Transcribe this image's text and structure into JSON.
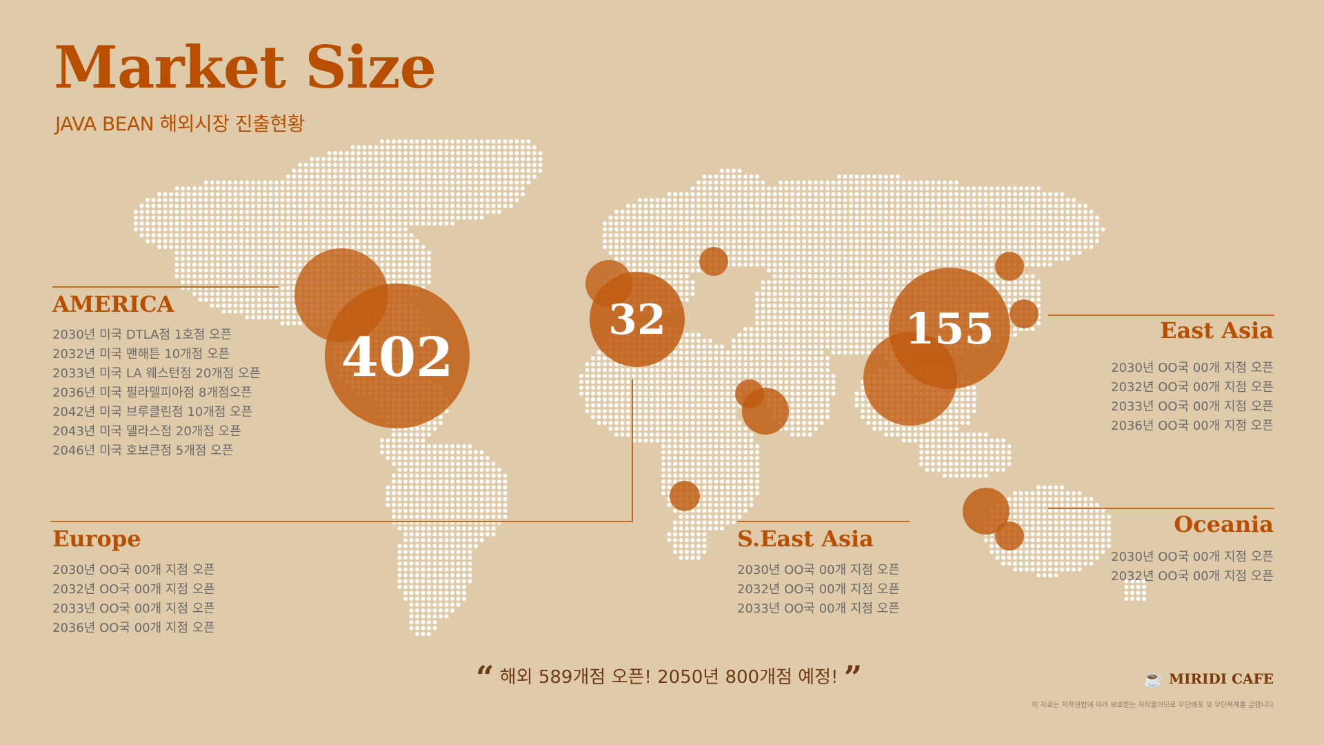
{
  "header": {
    "title": "Market Size",
    "subtitle": "JAVA BEAN 해외시장 진출현황"
  },
  "colors": {
    "background": "#dfcbaa",
    "accent": "#b84f00",
    "bubble": "#c05a10",
    "dots": "#ffffff"
  },
  "bubbles": {
    "america_value": "402",
    "europe_value": "32",
    "east_asia_value": "155"
  },
  "regions": {
    "america": {
      "name": "AMERICA",
      "items": [
        "2030년 미국 DTLA점 1호점 오픈",
        "2032년 미국 맨해튼 10개점 오픈",
        "2033년 미국 LA 웨스턴점 20개점 오픈",
        "2036년 미국 필라델피아점 8개점오픈",
        "2042년 미국 브루클린점 10개점 오픈",
        "2043년 미국 델라스점 20개점 오픈",
        "2046년 미국 호보큰점 5개점 오픈"
      ]
    },
    "europe": {
      "name": "Europe",
      "items": [
        "2030년 OO국 00개 지점 오픈",
        "2032년 OO국 00개 지점 오픈",
        "2033년 OO국 00개 지점 오픈",
        "2036년 OO국 00개 지점 오픈"
      ]
    },
    "seast_asia": {
      "name": "S.East Asia",
      "items": [
        "2030년 OO국 00개 지점 오픈",
        "2032년 OO국 00개 지점 오픈",
        "2033년 OO국 00개 지점 오픈"
      ]
    },
    "east_asia": {
      "name": "East Asia",
      "items": [
        "2030년 OO국 00개 지점 오픈",
        "2032년 OO국 00개 지점 오픈",
        "2033년 OO국 00개 지점 오픈",
        "2036년 OO국 00개 지점 오픈"
      ]
    },
    "oceania": {
      "name": "Oceania",
      "items": [
        "2030년 OO국 00개 지점 오픈",
        "2032년 OO국 00개 지점 오픈"
      ]
    }
  },
  "footer": {
    "quote": "해외 589개점 오픈! 2050년 800개점 예정!",
    "quote_open": "“",
    "quote_close": "”",
    "brand": "MIRIDI CAFE",
    "brand_icon": "coffee-cup-icon",
    "copyright": "이 자료는 저작권법에 따라 보호받는 저작물이므로 무단배포 및 무단복제를 금합니다"
  }
}
